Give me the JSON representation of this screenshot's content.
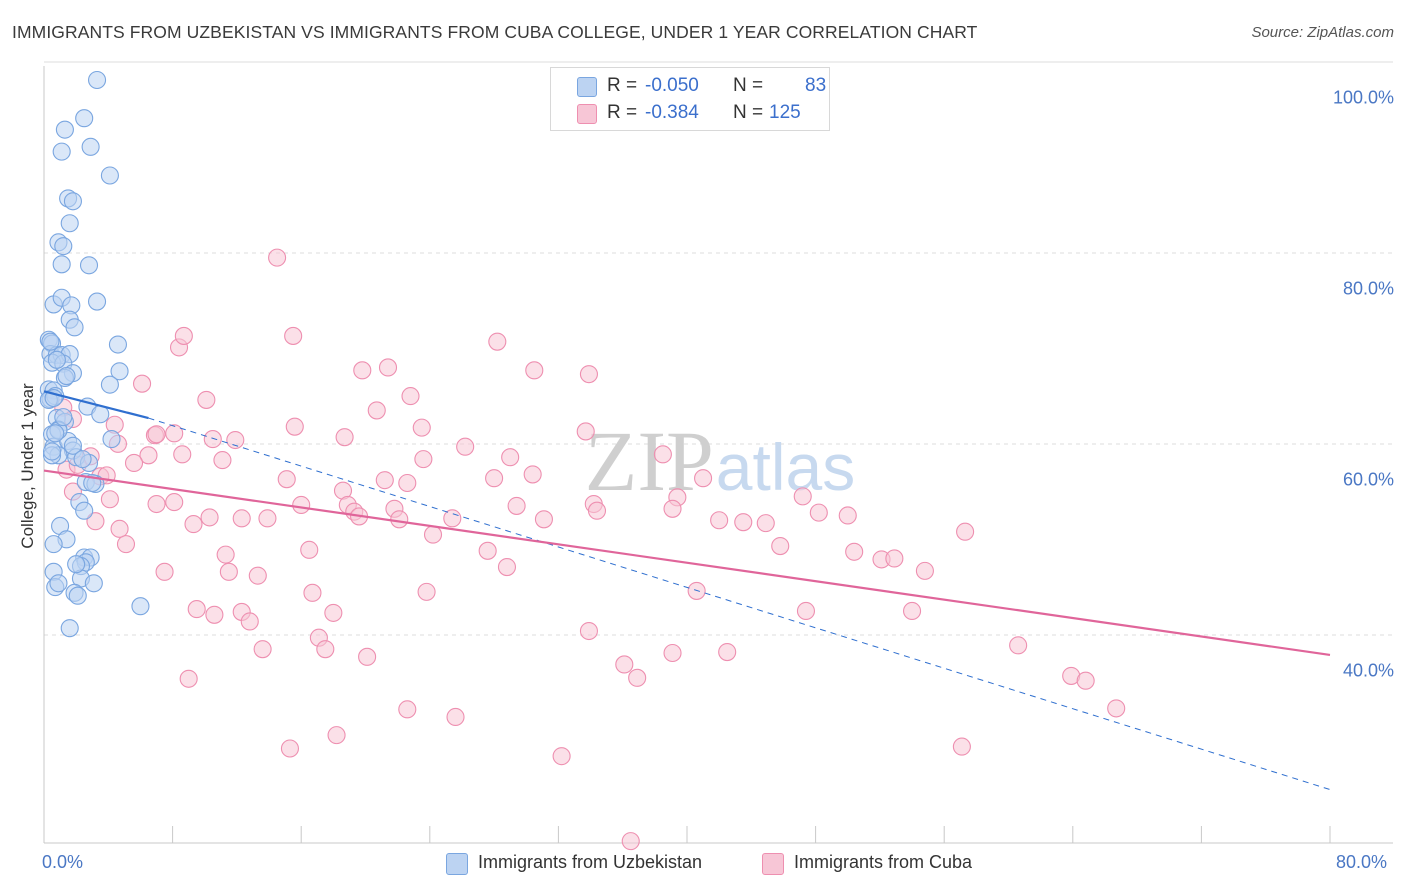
{
  "chart_data": {
    "type": "scatter",
    "title": "IMMIGRANTS FROM UZBEKISTAN VS IMMIGRANTS FROM CUBA COLLEGE, UNDER 1 YEAR CORRELATION CHART",
    "source": "Source: ZipAtlas.com",
    "ylabel": "College, Under 1 year",
    "xlabel": "",
    "xlim": [
      0,
      80
    ],
    "ylim": [
      20,
      102
    ],
    "x_tick_labels": [
      "0.0%",
      "80.0%"
    ],
    "y_ticks": [
      {
        "value": 100,
        "label": "100.0%"
      },
      {
        "value": 80,
        "label": "80.0%"
      },
      {
        "value": 60,
        "label": "60.0%"
      },
      {
        "value": 40,
        "label": "40.0%"
      }
    ],
    "watermark": "ZIPatlas",
    "legend": {
      "r_label": "R =",
      "n_label": "N =",
      "entries": [
        {
          "r": "-0.050",
          "n": "83"
        },
        {
          "r": "-0.384",
          "n": "125"
        }
      ]
    },
    "series": [
      {
        "name": "Immigrants from Uzbekistan",
        "color": "#7aa6e0",
        "fill": "#bcd3f2",
        "line_color": "#2f6fcf",
        "trend": {
          "x0": 0,
          "y0": 67.4,
          "x1": 6.5,
          "y1": 64.6
        },
        "trend_dashed": {
          "x0": 6.5,
          "y0": 64.6,
          "x1": 80,
          "y1": 25.7
        },
        "points": [
          [
            3.3,
            100
          ],
          [
            2.5,
            96
          ],
          [
            1.3,
            94.8
          ],
          [
            1.1,
            92.5
          ],
          [
            2.9,
            93
          ],
          [
            4.1,
            90
          ],
          [
            1.5,
            87.6
          ],
          [
            1.8,
            87.3
          ],
          [
            1.6,
            85
          ],
          [
            0.9,
            83
          ],
          [
            1.2,
            82.6
          ],
          [
            1.1,
            80.7
          ],
          [
            2.8,
            80.6
          ],
          [
            0.6,
            76.5
          ],
          [
            1.1,
            77.2
          ],
          [
            1.7,
            76.4
          ],
          [
            3.3,
            76.8
          ],
          [
            1.6,
            74.9
          ],
          [
            1.9,
            74.1
          ],
          [
            0.3,
            72.8
          ],
          [
            0.5,
            72.4
          ],
          [
            4.6,
            72.3
          ],
          [
            0.4,
            71.3
          ],
          [
            0.8,
            71.2
          ],
          [
            1.1,
            71.2
          ],
          [
            1.6,
            71.3
          ],
          [
            0.5,
            70.4
          ],
          [
            1.2,
            70.3
          ],
          [
            1.8,
            69.3
          ],
          [
            1.3,
            68.8
          ],
          [
            4.7,
            69.5
          ],
          [
            0.3,
            67.6
          ],
          [
            0.6,
            67.5
          ],
          [
            0.4,
            66.6
          ],
          [
            0.7,
            66.9
          ],
          [
            4.1,
            68.1
          ],
          [
            2.7,
            65.8
          ],
          [
            0.8,
            64.6
          ],
          [
            1.3,
            64.2
          ],
          [
            3.5,
            65
          ],
          [
            0.9,
            63.4
          ],
          [
            0.5,
            62.9
          ],
          [
            0.6,
            61.6
          ],
          [
            1.5,
            62.2
          ],
          [
            1.8,
            61.2
          ],
          [
            0.9,
            60.7
          ],
          [
            2.0,
            60.5
          ],
          [
            2.8,
            59.9
          ],
          [
            4.2,
            62.4
          ],
          [
            0.5,
            60.7
          ],
          [
            2.6,
            57.9
          ],
          [
            3.2,
            57.7
          ],
          [
            2.2,
            55.8
          ],
          [
            2.5,
            54.9
          ],
          [
            1.0,
            53.3
          ],
          [
            1.4,
            51.9
          ],
          [
            0.6,
            51.4
          ],
          [
            2.5,
            50.0
          ],
          [
            2.9,
            50.0
          ],
          [
            2.6,
            49.5
          ],
          [
            2.3,
            49.1
          ],
          [
            0.6,
            48.5
          ],
          [
            2.3,
            47.8
          ],
          [
            3.1,
            47.3
          ],
          [
            0.7,
            46.9
          ],
          [
            1.9,
            46.3
          ],
          [
            2.1,
            46.0
          ],
          [
            6.0,
            44.9
          ],
          [
            1.6,
            42.6
          ],
          [
            0.9,
            63.3
          ],
          [
            0.7,
            63.0
          ],
          [
            0.4,
            72.6
          ],
          [
            0.8,
            70.7
          ],
          [
            1.4,
            69.0
          ],
          [
            0.3,
            66.5
          ],
          [
            0.6,
            66.7
          ],
          [
            1.8,
            61.7
          ],
          [
            2.4,
            60.3
          ],
          [
            3.0,
            57.8
          ],
          [
            2.0,
            49.3
          ],
          [
            0.9,
            47.3
          ],
          [
            0.5,
            61.1
          ],
          [
            1.2,
            64.7
          ]
        ]
      },
      {
        "name": "Immigrants from Cuba",
        "color": "#ee8fb0",
        "fill": "#f7c6d6",
        "line_color": "#e0659a",
        "trend": {
          "x0": 0,
          "y0": 59.1,
          "x1": 80,
          "y1": 39.8
        },
        "points": [
          [
            14.5,
            81.4
          ],
          [
            8.4,
            72.0
          ],
          [
            8.7,
            73.2
          ],
          [
            15.5,
            73.2
          ],
          [
            28.2,
            72.6
          ],
          [
            19.8,
            69.6
          ],
          [
            21.4,
            69.9
          ],
          [
            30.5,
            69.6
          ],
          [
            33.9,
            69.2
          ],
          [
            6.1,
            68.2
          ],
          [
            10.1,
            66.5
          ],
          [
            22.8,
            66.9
          ],
          [
            20.7,
            65.4
          ],
          [
            1.2,
            65.7
          ],
          [
            1.8,
            64.5
          ],
          [
            4.4,
            63.9
          ],
          [
            15.6,
            63.7
          ],
          [
            23.5,
            63.6
          ],
          [
            33.7,
            63.2
          ],
          [
            6.9,
            62.8
          ],
          [
            7.0,
            62.9
          ],
          [
            8.1,
            63.0
          ],
          [
            11.9,
            62.3
          ],
          [
            18.7,
            62.6
          ],
          [
            26.2,
            61.6
          ],
          [
            4.6,
            61.9
          ],
          [
            10.5,
            62.4
          ],
          [
            2.9,
            60.6
          ],
          [
            8.6,
            60.8
          ],
          [
            6.5,
            60.7
          ],
          [
            23.6,
            60.3
          ],
          [
            38.5,
            60.8
          ],
          [
            3.5,
            58.5
          ],
          [
            1.4,
            59.2
          ],
          [
            2.1,
            59.7
          ],
          [
            3.9,
            58.6
          ],
          [
            5.6,
            59.9
          ],
          [
            11.1,
            60.2
          ],
          [
            29.0,
            60.5
          ],
          [
            15.1,
            58.2
          ],
          [
            21.2,
            58.1
          ],
          [
            22.6,
            57.8
          ],
          [
            28.0,
            58.3
          ],
          [
            30.4,
            58.7
          ],
          [
            18.6,
            57.0
          ],
          [
            4.1,
            56.1
          ],
          [
            1.8,
            56.9
          ],
          [
            7.0,
            55.6
          ],
          [
            8.1,
            55.8
          ],
          [
            16.0,
            55.5
          ],
          [
            18.9,
            55.5
          ],
          [
            19.3,
            54.8
          ],
          [
            21.8,
            55.1
          ],
          [
            25.4,
            54.1
          ],
          [
            29.4,
            55.4
          ],
          [
            31.1,
            54.0
          ],
          [
            34.2,
            55.6
          ],
          [
            34.4,
            54.9
          ],
          [
            39.4,
            56.3
          ],
          [
            39.1,
            55.1
          ],
          [
            47.2,
            56.4
          ],
          [
            48.2,
            54.7
          ],
          [
            50.0,
            54.4
          ],
          [
            3.2,
            53.8
          ],
          [
            4.7,
            53.0
          ],
          [
            9.3,
            53.5
          ],
          [
            10.3,
            54.2
          ],
          [
            12.3,
            54.1
          ],
          [
            13.9,
            54.1
          ],
          [
            19.6,
            54.3
          ],
          [
            22.1,
            54.0
          ],
          [
            42.0,
            53.9
          ],
          [
            43.5,
            53.7
          ],
          [
            44.9,
            53.6
          ],
          [
            24.2,
            52.4
          ],
          [
            57.3,
            52.7
          ],
          [
            5.1,
            51.4
          ],
          [
            11.3,
            50.3
          ],
          [
            16.5,
            50.8
          ],
          [
            27.6,
            50.7
          ],
          [
            45.8,
            51.2
          ],
          [
            50.4,
            50.6
          ],
          [
            52.1,
            49.8
          ],
          [
            52.9,
            49.9
          ],
          [
            28.8,
            49.0
          ],
          [
            7.5,
            48.5
          ],
          [
            11.5,
            48.5
          ],
          [
            13.3,
            48.1
          ],
          [
            54.8,
            48.6
          ],
          [
            16.7,
            46.3
          ],
          [
            23.8,
            46.4
          ],
          [
            40.6,
            46.5
          ],
          [
            9.5,
            44.6
          ],
          [
            10.6,
            44.0
          ],
          [
            12.3,
            44.3
          ],
          [
            12.8,
            43.3
          ],
          [
            18.0,
            44.2
          ],
          [
            47.4,
            44.4
          ],
          [
            54.0,
            44.4
          ],
          [
            33.9,
            42.3
          ],
          [
            17.1,
            41.6
          ],
          [
            17.5,
            40.4
          ],
          [
            13.6,
            40.4
          ],
          [
            20.1,
            39.6
          ],
          [
            39.1,
            40.0
          ],
          [
            42.5,
            40.1
          ],
          [
            60.6,
            40.8
          ],
          [
            36.1,
            38.8
          ],
          [
            9.0,
            37.3
          ],
          [
            36.9,
            37.4
          ],
          [
            63.9,
            37.6
          ],
          [
            64.8,
            37.1
          ],
          [
            22.6,
            34.1
          ],
          [
            25.6,
            33.3
          ],
          [
            66.7,
            34.2
          ],
          [
            18.2,
            31.4
          ],
          [
            15.3,
            30.0
          ],
          [
            57.1,
            30.2
          ],
          [
            32.2,
            29.2
          ],
          [
            36.5,
            20.3
          ],
          [
            41.0,
            58.3
          ]
        ]
      }
    ]
  }
}
